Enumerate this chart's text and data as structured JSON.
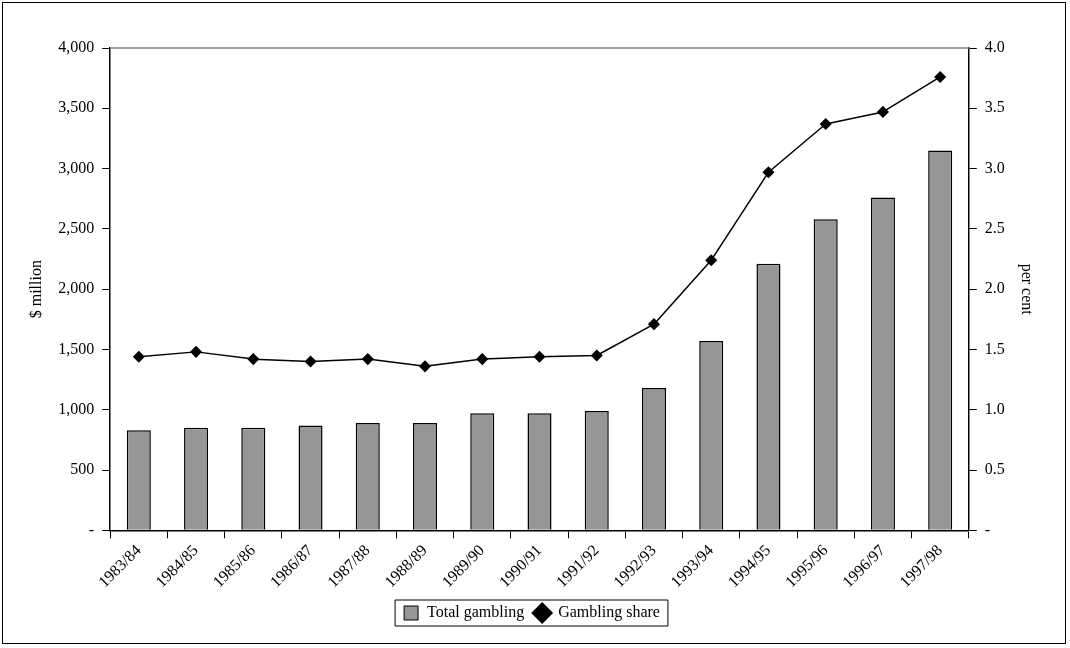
{
  "chart_data": {
    "type": "bar",
    "categories": [
      "1983/84",
      "1984/85",
      "1985/86",
      "1986/87",
      "1987/88",
      "1988/89",
      "1989/90",
      "1990/91",
      "1991/92",
      "1992/93",
      "1993/94",
      "1994/95",
      "1995/96",
      "1996/97",
      "1997/98"
    ],
    "series": [
      {
        "name": "Total gambling",
        "color": "#969696",
        "values": [
          830,
          850,
          850,
          870,
          890,
          890,
          970,
          970,
          990,
          1180,
          1570,
          2210,
          2580,
          2760,
          3150
        ]
      },
      {
        "name": "Gambling share",
        "type": "line",
        "axis": "y2",
        "color": "#000000",
        "marker": "diamond",
        "values": [
          1.44,
          1.48,
          1.42,
          1.4,
          1.42,
          1.36,
          1.42,
          1.44,
          1.45,
          1.71,
          2.24,
          2.97,
          3.37,
          3.47,
          3.76
        ]
      }
    ],
    "ylabel": "$ million",
    "y2label": "per cent",
    "ylim": [
      0,
      4000
    ],
    "yticks": [
      {
        "value": 0,
        "label": "-"
      },
      {
        "value": 500,
        "label": "500"
      },
      {
        "value": 1000,
        "label": "1,000"
      },
      {
        "value": 1500,
        "label": "1,500"
      },
      {
        "value": 2000,
        "label": "2,000"
      },
      {
        "value": 2500,
        "label": "2,500"
      },
      {
        "value": 3000,
        "label": "3,000"
      },
      {
        "value": 3500,
        "label": "3,500"
      },
      {
        "value": 4000,
        "label": "4,000"
      }
    ],
    "y2lim": [
      0,
      4
    ],
    "y2ticks": [
      {
        "value": 0,
        "label": "-"
      },
      {
        "value": 0.5,
        "label": "0.5"
      },
      {
        "value": 1,
        "label": "1.0"
      },
      {
        "value": 1.5,
        "label": "1.5"
      },
      {
        "value": 2,
        "label": "2.0"
      },
      {
        "value": 2.5,
        "label": "2.5"
      },
      {
        "value": 3,
        "label": "3.0"
      },
      {
        "value": 3.5,
        "label": "3.5"
      },
      {
        "value": 4,
        "label": "4.0"
      }
    ],
    "grid": false,
    "legend": "bottom"
  }
}
